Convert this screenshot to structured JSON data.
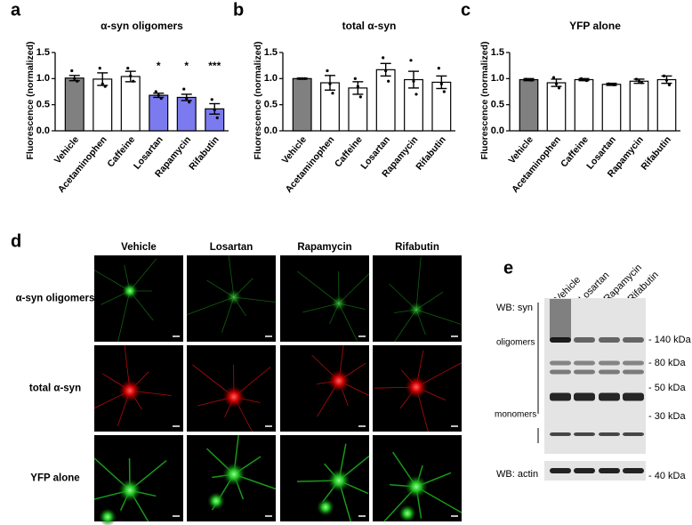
{
  "chart_data": [
    {
      "type": "bar",
      "panel": "a",
      "title": "α-syn oligomers",
      "ylabel": "Fluorescence (normalized)",
      "categories": [
        "Vehicle",
        "Acetaminophen",
        "Caffeine",
        "Losartan",
        "Rapamycin",
        "Rifabutin"
      ],
      "values": [
        1.01,
        0.99,
        1.04,
        0.68,
        0.64,
        0.42
      ],
      "errors": [
        0.05,
        0.12,
        0.1,
        0.04,
        0.06,
        0.1
      ],
      "points": [
        [
          1.15,
          1.0,
          0.95
        ],
        [
          1.2,
          0.9,
          0.85
        ],
        [
          1.2,
          1.05,
          0.95
        ],
        [
          0.75,
          0.68,
          0.62
        ],
        [
          0.8,
          0.62,
          0.55
        ],
        [
          0.6,
          0.4,
          0.25
        ]
      ],
      "colors": [
        "#808080",
        "#ffffff",
        "#ffffff",
        "#7b7bef",
        "#7b7bef",
        "#7b7bef"
      ],
      "annotations": [
        null,
        null,
        null,
        "*",
        "*",
        "***"
      ],
      "ylim": [
        0,
        1.5
      ],
      "yticks": [
        {
          "value": 0,
          "label": "0.0"
        },
        {
          "value": 0.5,
          "label": "0.5"
        },
        {
          "value": 1,
          "label": "1.0"
        },
        {
          "value": 1.5,
          "label": "1.5"
        }
      ]
    },
    {
      "type": "bar",
      "panel": "b",
      "title": "total α-syn",
      "ylabel": "Fluorescence (normalized)",
      "categories": [
        "Vehicle",
        "Acetaminophen",
        "Caffeine",
        "Losartan",
        "Rapamycin",
        "Rifabutin"
      ],
      "values": [
        1.0,
        0.92,
        0.82,
        1.17,
        0.98,
        0.93
      ],
      "errors": [
        0.01,
        0.14,
        0.12,
        0.12,
        0.16,
        0.12
      ],
      "points": [
        [
          1.0,
          1.0,
          1.0
        ],
        [
          1.15,
          0.9,
          0.72
        ],
        [
          1.0,
          0.85,
          0.65
        ],
        [
          1.4,
          1.15,
          0.95
        ],
        [
          1.35,
          0.95,
          0.7
        ],
        [
          1.2,
          0.9,
          0.75
        ]
      ],
      "colors": [
        "#808080",
        "#ffffff",
        "#ffffff",
        "#ffffff",
        "#ffffff",
        "#ffffff"
      ],
      "ylim": [
        0,
        1.5
      ],
      "yticks": [
        {
          "value": 0,
          "label": "0.0"
        },
        {
          "value": 0.5,
          "label": "0.5"
        },
        {
          "value": 1,
          "label": "1.0"
        },
        {
          "value": 1.5,
          "label": "1.5"
        }
      ]
    },
    {
      "type": "bar",
      "panel": "c",
      "title": "YFP alone",
      "ylabel": "Fluorescence (normalized)",
      "categories": [
        "Vehicle",
        "Acetaminophen",
        "Caffeine",
        "Losartan",
        "Rapamycin",
        "Rifabutin"
      ],
      "values": [
        0.98,
        0.92,
        0.98,
        0.89,
        0.95,
        0.98
      ],
      "errors": [
        0.02,
        0.07,
        0.02,
        0.02,
        0.04,
        0.07
      ],
      "points": [
        [
          0.99,
          0.98,
          0.97
        ],
        [
          1.02,
          0.9,
          0.82
        ],
        [
          1.0,
          0.98,
          0.96
        ],
        [
          0.9,
          0.89,
          0.88
        ],
        [
          0.99,
          0.95,
          0.92
        ],
        [
          1.05,
          0.97,
          0.88
        ]
      ],
      "colors": [
        "#808080",
        "#ffffff",
        "#ffffff",
        "#ffffff",
        "#ffffff",
        "#ffffff"
      ],
      "ylim": [
        0,
        1.5
      ],
      "yticks": [
        {
          "value": 0,
          "label": "0.0"
        },
        {
          "value": 0.5,
          "label": "0.5"
        },
        {
          "value": 1,
          "label": "1.0"
        },
        {
          "value": 1.5,
          "label": "1.5"
        }
      ]
    }
  ],
  "panel_d": {
    "label": "d",
    "columns": [
      "Vehicle",
      "Losartan",
      "Rapamycin",
      "Rifabutin"
    ],
    "rows": [
      "α-syn oligomers",
      "total α-syn",
      "YFP alone"
    ]
  },
  "panel_e": {
    "label": "e",
    "lanes": [
      "Vehicle",
      "Losartan",
      "Rapamycin",
      "Rifabutin"
    ],
    "blot_label": "WB: syn",
    "oligomers": "oligomers",
    "monomers": "monomers",
    "actin_label": "WB: actin",
    "markers": [
      "- 140 kDa",
      "- 80 kDa",
      "- 50 kDa",
      "- 30 kDa"
    ],
    "actin_marker": "- 40 kDa"
  }
}
